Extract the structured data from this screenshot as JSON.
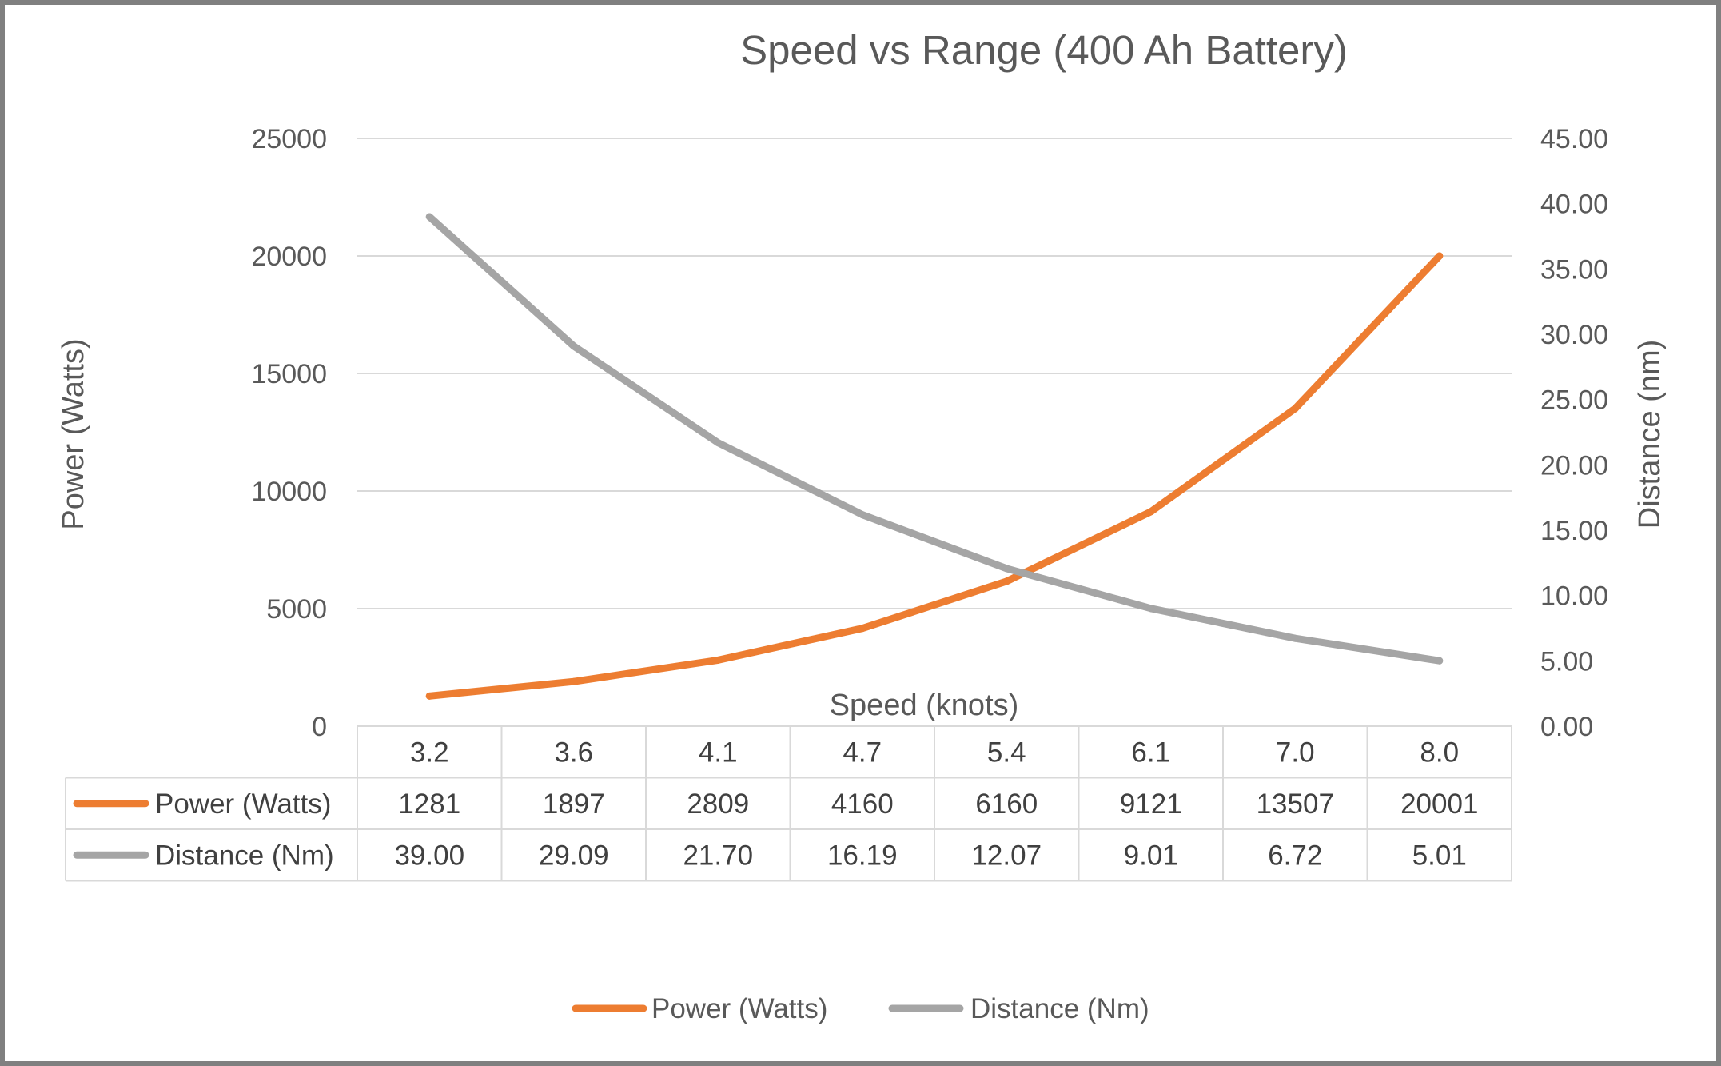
{
  "chart_data": {
    "type": "line",
    "title": "Speed vs Range (400 Ah Battery)",
    "xlabel": "Speed (knots)",
    "ylabel": "Power (Watts)",
    "y2label": "Distance (nm)",
    "categories": [
      "3.2",
      "3.6",
      "4.1",
      "4.7",
      "5.4",
      "6.1",
      "7.0",
      "8.0"
    ],
    "ylim": [
      0,
      25000
    ],
    "yticks": [
      "0",
      "5000",
      "10000",
      "15000",
      "20000",
      "25000"
    ],
    "y2lim": [
      0,
      45
    ],
    "y2ticks": [
      "0.00",
      "5.00",
      "10.00",
      "15.00",
      "20.00",
      "25.00",
      "30.00",
      "35.00",
      "40.00",
      "45.00"
    ],
    "grid": true,
    "legend": "bottom",
    "data_table": true,
    "series": [
      {
        "name": "Power (Watts)",
        "axis": "left",
        "color": "#ED7D31",
        "values": [
          1281,
          1897,
          2809,
          4160,
          6160,
          9121,
          13507,
          20001
        ],
        "labels": [
          "1281",
          "1897",
          "2809",
          "4160",
          "6160",
          "9121",
          "13507",
          "20001"
        ]
      },
      {
        "name": "Distance (Nm)",
        "axis": "right",
        "color": "#A5A5A5",
        "values": [
          39.0,
          29.09,
          21.7,
          16.19,
          12.07,
          9.01,
          6.72,
          5.01
        ],
        "labels": [
          "39.00",
          "29.09",
          "21.70",
          "16.19",
          "12.07",
          "9.01",
          "6.72",
          "5.01"
        ]
      }
    ]
  }
}
